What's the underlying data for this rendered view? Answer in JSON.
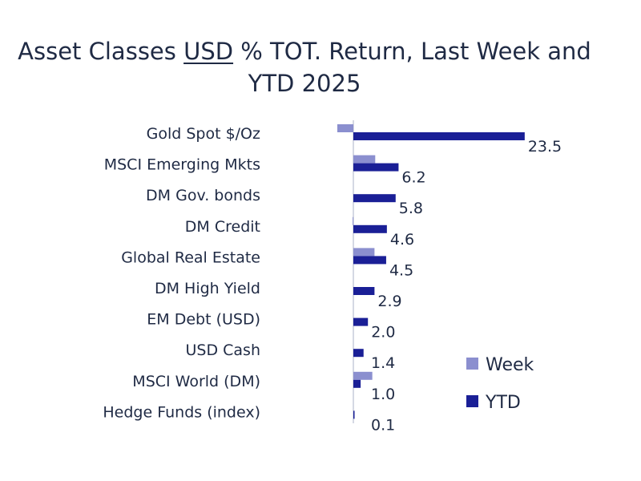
{
  "chart_data": {
    "type": "bar",
    "orientation": "horizontal",
    "title_parts": [
      "Asset Classes ",
      "USD",
      " % TOT. Return, Last Week and"
    ],
    "title_line2": "YTD 2025",
    "categories": [
      "Gold Spot   $/Oz",
      "MSCI Emerging Mkts",
      "DM Gov. bonds",
      "DM Credit",
      "Global Real Estate",
      "DM High Yield",
      "EM Debt (USD)",
      "USD Cash",
      "MSCI World (DM)",
      "Hedge Funds (index)"
    ],
    "series": [
      {
        "name": "Week",
        "color": "#8b8fcf",
        "values": [
          -2.2,
          3.0,
          0.0,
          -0.1,
          2.9,
          0.0,
          0.0,
          0.0,
          2.6,
          0.0
        ]
      },
      {
        "name": "YTD",
        "color": "#1a1f96",
        "values": [
          23.5,
          6.2,
          5.8,
          4.6,
          4.5,
          2.9,
          2.0,
          1.4,
          1.0,
          0.1
        ]
      }
    ],
    "data_labels": [
      "23.5",
      "6.2",
      "5.8",
      "4.6",
      "4.5",
      "2.9",
      "2.0",
      "1.4",
      "1.0",
      "0.1"
    ],
    "legend_position": "bottom-right",
    "grid": false
  }
}
